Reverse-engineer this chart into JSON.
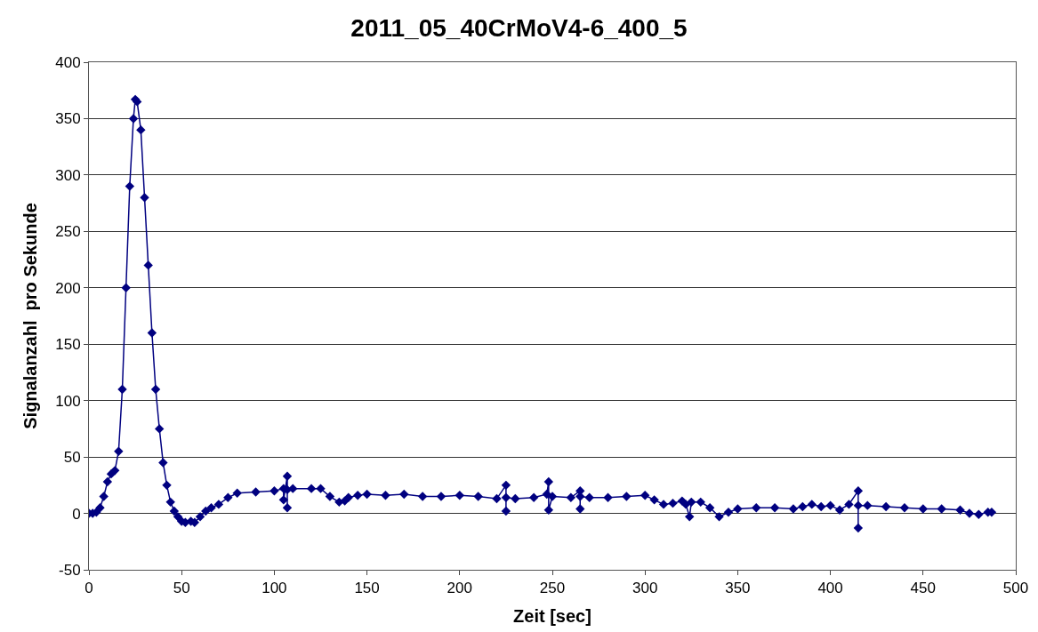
{
  "chart_data": {
    "type": "line",
    "title": "2011_05_40CrMoV4-6_400_5",
    "xlabel": "Zeit [sec]",
    "ylabel": "Signalanzahl  pro Sekunde",
    "x": [
      0,
      2,
      4,
      6,
      8,
      10,
      12,
      14,
      16,
      18,
      20,
      22,
      24,
      25,
      26,
      28,
      30,
      32,
      34,
      36,
      38,
      40,
      42,
      44,
      46,
      48,
      50,
      52,
      55,
      57,
      60,
      63,
      66,
      70,
      75,
      80,
      90,
      100,
      105,
      105,
      107,
      107,
      107,
      110,
      120,
      125,
      130,
      135,
      138,
      140,
      145,
      150,
      160,
      170,
      180,
      190,
      200,
      210,
      220,
      225,
      225,
      225,
      230,
      240,
      247,
      248,
      248,
      250,
      260,
      265,
      265,
      265,
      270,
      280,
      290,
      300,
      305,
      310,
      315,
      320,
      322,
      324,
      325,
      330,
      335,
      340,
      345,
      350,
      360,
      370,
      380,
      385,
      390,
      395,
      400,
      405,
      410,
      415,
      415,
      415,
      420,
      430,
      440,
      450,
      460,
      470,
      475,
      480,
      485,
      487
    ],
    "series": [
      {
        "color": "#000080",
        "values": [
          0,
          0,
          1,
          5,
          15,
          28,
          35,
          38,
          55,
          110,
          200,
          290,
          350,
          367,
          365,
          340,
          280,
          220,
          160,
          110,
          75,
          45,
          25,
          10,
          2,
          -3,
          -7,
          -8,
          -7,
          -8,
          -3,
          2,
          5,
          8,
          14,
          18,
          19,
          20,
          22,
          12,
          33,
          5,
          21,
          22,
          22,
          22,
          15,
          10,
          11,
          14,
          16,
          17,
          16,
          17,
          15,
          15,
          16,
          15,
          13,
          25,
          2,
          14,
          13,
          14,
          17,
          28,
          3,
          15,
          14,
          20,
          4,
          15,
          14,
          14,
          15,
          16,
          12,
          8,
          9,
          11,
          8,
          -3,
          10,
          10,
          5,
          -3,
          1,
          4,
          5,
          5,
          4,
          6,
          8,
          6,
          7,
          3,
          8,
          20,
          -13,
          7,
          7,
          6,
          5,
          4,
          4,
          3,
          0,
          -1,
          1,
          1
        ]
      }
    ],
    "xlim": [
      0,
      500
    ],
    "xticks": [
      0,
      50,
      100,
      150,
      200,
      250,
      300,
      350,
      400,
      450,
      500
    ],
    "ylim": [
      -50,
      400
    ],
    "yticks": [
      -50,
      0,
      50,
      100,
      150,
      200,
      250,
      300,
      350,
      400
    ],
    "grid": "y",
    "marker": "diamond",
    "line_style": "solid",
    "legend": false
  }
}
